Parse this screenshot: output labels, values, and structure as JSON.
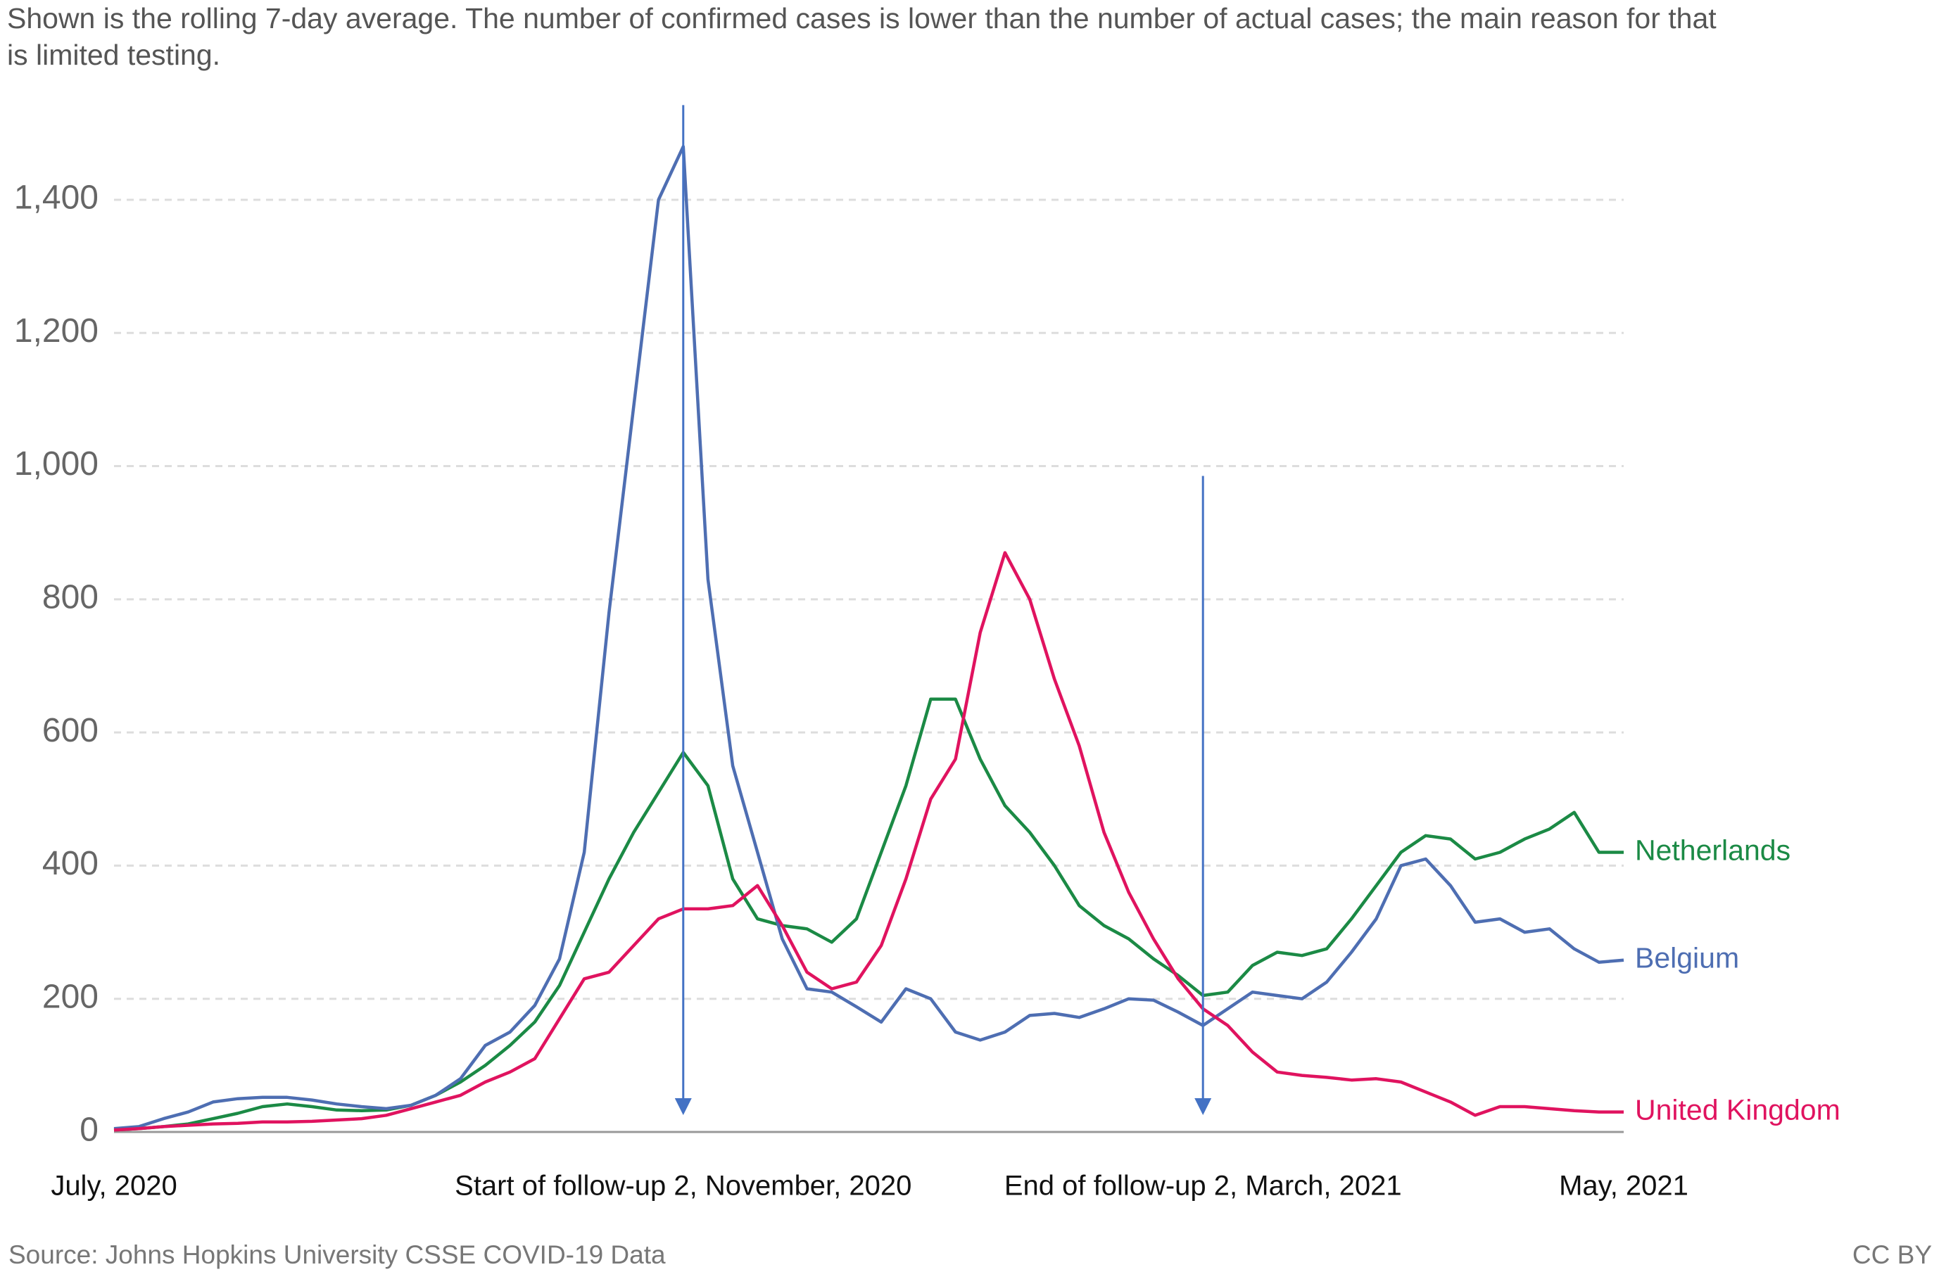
{
  "chart_data": {
    "type": "line",
    "subtitle": "Shown is the rolling 7-day average. The number of confirmed cases is lower than the number of actual cases; the main reason for that is limited testing.",
    "source": "Source: Johns Hopkins University CSSE COVID-19 Data",
    "license": "CC BY",
    "categories": [
      "July, 2020",
      null,
      null,
      null,
      null,
      null,
      null,
      null,
      null,
      null,
      null,
      null,
      null,
      null,
      null,
      null,
      null,
      null,
      null,
      null,
      null,
      null,
      null,
      "Start of follow-up 2, November, 2020",
      null,
      null,
      null,
      null,
      null,
      null,
      null,
      null,
      null,
      null,
      null,
      null,
      null,
      null,
      null,
      null,
      null,
      null,
      null,
      null,
      "End of follow-up 2, March, 2021",
      null,
      null,
      null,
      null,
      null,
      null,
      null,
      null,
      null,
      null,
      null,
      null,
      null,
      null,
      null,
      null,
      "May, 2021"
    ],
    "series": [
      {
        "name": "Netherlands",
        "color": "#1b8a45",
        "values": [
          3,
          5,
          8,
          12,
          20,
          28,
          38,
          42,
          38,
          33,
          32,
          33,
          40,
          55,
          75,
          100,
          130,
          165,
          220,
          300,
          380,
          450,
          510,
          570,
          520,
          380,
          320,
          310,
          305,
          285,
          320,
          420,
          520,
          650,
          650,
          560,
          490,
          450,
          400,
          340,
          310,
          290,
          260,
          235,
          205,
          210,
          250,
          270,
          265,
          275,
          320,
          370,
          420,
          445,
          440,
          410,
          420,
          440,
          455,
          480,
          420,
          420
        ]
      },
      {
        "name": "Belgium",
        "color": "#4e6eb2",
        "values": [
          5,
          8,
          20,
          30,
          45,
          50,
          52,
          52,
          48,
          42,
          38,
          35,
          40,
          55,
          80,
          130,
          150,
          190,
          260,
          420,
          780,
          1090,
          1400,
          1480,
          830,
          550,
          420,
          290,
          215,
          210,
          188,
          165,
          215,
          200,
          150,
          138,
          150,
          175,
          178,
          172,
          185,
          200,
          198,
          180,
          160,
          185,
          210,
          205,
          200,
          225,
          270,
          320,
          400,
          410,
          370,
          315,
          320,
          300,
          305,
          275,
          255,
          258
        ]
      },
      {
        "name": "United Kingdom",
        "color": "#e0135f",
        "values": [
          3,
          5,
          8,
          10,
          12,
          13,
          15,
          15,
          16,
          18,
          20,
          25,
          35,
          45,
          55,
          75,
          90,
          110,
          170,
          230,
          240,
          280,
          320,
          335,
          335,
          340,
          370,
          310,
          240,
          215,
          225,
          280,
          380,
          500,
          560,
          750,
          870,
          800,
          680,
          580,
          450,
          360,
          290,
          230,
          185,
          160,
          120,
          90,
          85,
          82,
          78,
          80,
          75,
          60,
          45,
          25,
          38,
          38,
          35,
          32,
          30,
          30
        ]
      }
    ],
    "ylim": [
      0,
      1550
    ],
    "yticks": [
      0,
      200,
      400,
      600,
      800,
      {
        "value": 1000,
        "label": "1,000"
      },
      {
        "value": 1200,
        "label": "1,200"
      },
      {
        "value": 1400,
        "label": "1,400"
      }
    ],
    "grid": true
  }
}
